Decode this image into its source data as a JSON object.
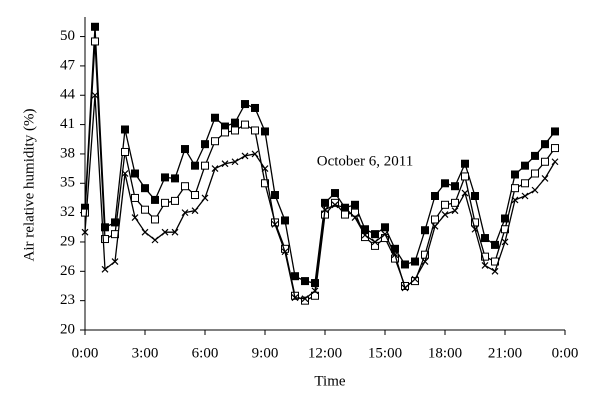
{
  "chart_data": {
    "type": "line",
    "annotation": "October 6, 2011",
    "xlabel": "Time",
    "ylabel": "Air relative humidity (%)",
    "x": [
      0,
      0.5,
      1,
      1.5,
      2,
      2.5,
      3,
      3.5,
      4,
      4.5,
      5,
      5.5,
      6,
      6.5,
      7,
      7.5,
      8,
      8.5,
      9,
      9.5,
      10,
      10.5,
      11,
      11.5,
      12,
      12.5,
      13,
      13.5,
      14,
      14.5,
      15,
      15.5,
      16,
      16.5,
      17,
      17.5,
      18,
      18.5,
      19,
      19.5,
      20,
      20.5,
      21,
      21.5,
      22,
      22.5,
      23,
      23.5
    ],
    "series": [
      {
        "color": "#000000",
        "marker": "square-filled",
        "values": [
          32.5,
          51,
          30.5,
          31,
          40.5,
          36,
          34.5,
          33.3,
          35.6,
          35.5,
          38.5,
          36.8,
          39,
          41.7,
          40.8,
          41.2,
          43.1,
          42.7,
          40.3,
          33.8,
          31.2,
          25.5,
          25,
          24.8,
          33,
          34,
          32.5,
          32.8,
          30.3,
          29.8,
          30.5,
          28.3,
          26.7,
          27,
          30.2,
          33.7,
          35,
          34.7,
          37,
          33.7,
          29.4,
          28.7,
          31.4,
          35.9,
          36.8,
          37.8,
          39,
          40.3
        ]
      },
      {
        "color": "#000000",
        "marker": "square-open",
        "values": [
          32,
          49.5,
          29.3,
          29.8,
          38.2,
          33.5,
          32.3,
          31.3,
          33,
          33.2,
          34.7,
          33.8,
          36.8,
          39.3,
          40.2,
          40.4,
          41,
          40.4,
          35,
          31,
          28.3,
          23.5,
          23,
          23.5,
          31.8,
          33,
          31.8,
          32,
          29.5,
          28.6,
          29.4,
          27.3,
          24.5,
          25,
          27.7,
          31.3,
          32.8,
          33,
          35.7,
          31,
          27.5,
          27,
          30.3,
          34.5,
          35,
          36,
          37.2,
          38.6
        ]
      },
      {
        "color": "#000000",
        "marker": "cross",
        "values": [
          30,
          44,
          26.2,
          27,
          36,
          31.5,
          30,
          29.2,
          30,
          30,
          32,
          32.2,
          33.5,
          36.5,
          37,
          37.2,
          37.8,
          38,
          36.5,
          30.8,
          28,
          23.3,
          23.2,
          24,
          32.3,
          32.8,
          32.5,
          31.5,
          29.7,
          29,
          29.8,
          27.7,
          24.3,
          25.2,
          27,
          30.6,
          31.8,
          32.2,
          34,
          30.3,
          26.6,
          26,
          29,
          33.3,
          33.7,
          34.3,
          35.5,
          37.2
        ]
      }
    ],
    "xlim": [
      0,
      24
    ],
    "xticks": [
      {
        "value": 0,
        "label": "0:00"
      },
      {
        "value": 3,
        "label": "3:00"
      },
      {
        "value": 6,
        "label": "6:00"
      },
      {
        "value": 9,
        "label": "9:00"
      },
      {
        "value": 12,
        "label": "12:00"
      },
      {
        "value": 15,
        "label": "15:00"
      },
      {
        "value": 18,
        "label": "18:00"
      },
      {
        "value": 21,
        "label": "21:00"
      },
      {
        "value": 24,
        "label": "0:00"
      }
    ],
    "ylim": [
      20,
      52
    ],
    "yticks": [
      20,
      23,
      26,
      29,
      32,
      35,
      38,
      41,
      44,
      47,
      50
    ],
    "grid": false
  }
}
